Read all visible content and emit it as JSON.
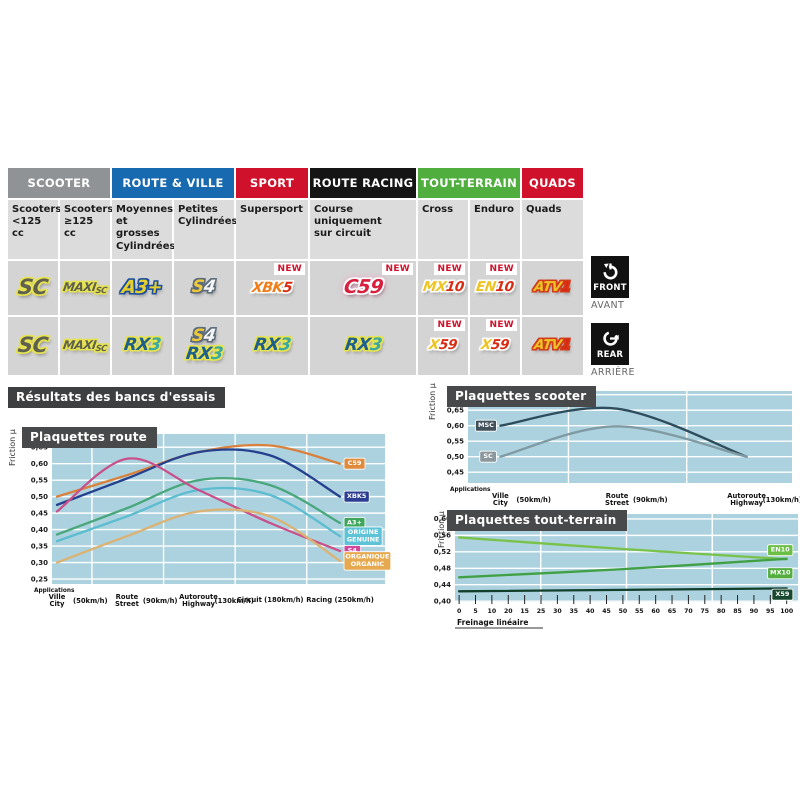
{
  "section_title": "Résultats des bancs d'essais",
  "orientation": [
    {
      "en": "FRONT",
      "fr": "AVANT"
    },
    {
      "en": "REAR",
      "fr": "ARRIÈRE"
    }
  ],
  "table": {
    "new_label": "NEW",
    "groups": [
      {
        "label": "SCOOTER",
        "bg": "#8f9396",
        "fg": "#ffffff",
        "span": 2
      },
      {
        "label": "ROUTE & VILLE",
        "bg": "#1769b0",
        "fg": "#ffffff",
        "span": 2
      },
      {
        "label": "SPORT",
        "bg": "#d0112b",
        "fg": "#ffffff",
        "span": 1
      },
      {
        "label": "ROUTE RACING",
        "bg": "#151515",
        "fg": "#ffffff",
        "span": 1
      },
      {
        "label": "TOUT-TERRAIN",
        "bg": "#4fae3d",
        "fg": "#ffffff",
        "span": 2
      },
      {
        "label": "QUADS",
        "bg": "#d0112b",
        "fg": "#ffffff",
        "span": 1
      }
    ],
    "columns": [
      "Scooters\n<125 cc",
      "Scooters\n≥125 cc",
      "Moyennes\net grosses\nCylindrées",
      "Petites\nCylindrées",
      "Supersport",
      "Course\nuniquement\nsur circuit",
      "Cross",
      "Enduro",
      "Quads"
    ],
    "rows": [
      {
        "id": "front",
        "cells": [
          {
            "badges": [
              {
                "name": "SC",
                "parts": [
                  {
                    "t": "SC",
                    "c": "#5f6050"
                  }
                ],
                "outline": "#e6e34e"
              }
            ]
          },
          {
            "badges": [
              {
                "name": "MAXI-SC",
                "parts": [
                  {
                    "t": "MAXI",
                    "c": "#5f6050"
                  },
                  {
                    "t": "SC",
                    "c": "#5f6050",
                    "small": true
                  }
                ],
                "outline": "#e6e34e"
              }
            ]
          },
          {
            "badges": [
              {
                "name": "A3+",
                "parts": [
                  {
                    "t": "A3+",
                    "c": "#e7cf2e"
                  }
                ],
                "outline": "#1d4f9e"
              }
            ]
          },
          {
            "badges": [
              {
                "name": "S4",
                "parts": [
                  {
                    "t": "S",
                    "c": "#eec73a"
                  },
                  {
                    "t": "4",
                    "c": "#f5f5f5"
                  }
                ],
                "outline": "#5a6b7a"
              }
            ]
          },
          {
            "badges": [
              {
                "name": "XBK5",
                "parts": [
                  {
                    "t": "XBK",
                    "c": "#ef7d1a"
                  },
                  {
                    "t": "5",
                    "c": "#d92b12"
                  }
                ],
                "outline": "#ffffff"
              }
            ],
            "new": true
          },
          {
            "badges": [
              {
                "name": "C59",
                "parts": [
                  {
                    "t": "C59",
                    "c": "#d6203d"
                  }
                ],
                "outline": "#ffffff",
                "glow": "#f2a0c0"
              }
            ],
            "new": true
          },
          {
            "badges": [
              {
                "name": "MX10",
                "parts": [
                  {
                    "t": "MX",
                    "c": "#eec425"
                  },
                  {
                    "t": "10",
                    "c": "#d92b12"
                  }
                ],
                "outline": "#ffffff"
              }
            ],
            "new": true
          },
          {
            "badges": [
              {
                "name": "EN10",
                "parts": [
                  {
                    "t": "EN",
                    "c": "#eec425"
                  },
                  {
                    "t": "10",
                    "c": "#d92b12"
                  }
                ],
                "outline": "#ffffff"
              }
            ],
            "new": true
          },
          {
            "badges": [
              {
                "name": "ATV1",
                "parts": [
                  {
                    "t": "ATV",
                    "c": "#eec425"
                  },
                  {
                    "t": "1",
                    "c": "#d92b12"
                  }
                ],
                "outline": "#d23b1a"
              }
            ]
          }
        ]
      },
      {
        "id": "rear",
        "cells": [
          {
            "badges": [
              {
                "name": "SC",
                "parts": [
                  {
                    "t": "SC",
                    "c": "#5f6050"
                  }
                ],
                "outline": "#e6e34e"
              }
            ]
          },
          {
            "badges": [
              {
                "name": "MAXI-SC",
                "parts": [
                  {
                    "t": "MAXI",
                    "c": "#5f6050"
                  },
                  {
                    "t": "SC",
                    "c": "#5f6050",
                    "small": true
                  }
                ],
                "outline": "#e6e34e"
              }
            ]
          },
          {
            "badges": [
              {
                "name": "RX3",
                "parts": [
                  {
                    "t": "RX",
                    "c": "#1e5f8c"
                  },
                  {
                    "t": "3",
                    "c": "#3aa7a0"
                  }
                ],
                "outline": "#e6e34e"
              }
            ]
          },
          {
            "badges": [
              {
                "name": "S4",
                "parts": [
                  {
                    "t": "S",
                    "c": "#eec73a"
                  },
                  {
                    "t": "4",
                    "c": "#f5f5f5"
                  }
                ],
                "outline": "#5a6b7a"
              },
              {
                "name": "RX3",
                "parts": [
                  {
                    "t": "RX",
                    "c": "#1e5f8c"
                  },
                  {
                    "t": "3",
                    "c": "#3aa7a0"
                  }
                ],
                "outline": "#e6e34e"
              }
            ]
          },
          {
            "badges": [
              {
                "name": "RX3",
                "parts": [
                  {
                    "t": "RX",
                    "c": "#1e5f8c"
                  },
                  {
                    "t": "3",
                    "c": "#3aa7a0"
                  }
                ],
                "outline": "#e6e34e"
              }
            ]
          },
          {
            "badges": [
              {
                "name": "RX3",
                "parts": [
                  {
                    "t": "RX",
                    "c": "#1e5f8c"
                  },
                  {
                    "t": "3",
                    "c": "#3aa7a0"
                  }
                ],
                "outline": "#e6e34e"
              }
            ]
          },
          {
            "badges": [
              {
                "name": "X59",
                "parts": [
                  {
                    "t": "X",
                    "c": "#eec425"
                  },
                  {
                    "t": "59",
                    "c": "#d92b12"
                  }
                ],
                "outline": "#ffffff"
              }
            ],
            "new": true
          },
          {
            "badges": [
              {
                "name": "X59",
                "parts": [
                  {
                    "t": "X",
                    "c": "#eec425"
                  },
                  {
                    "t": "59",
                    "c": "#d92b12"
                  }
                ],
                "outline": "#ffffff"
              }
            ],
            "new": true
          },
          {
            "badges": [
              {
                "name": "ATV1",
                "parts": [
                  {
                    "t": "ATV",
                    "c": "#eec425"
                  },
                  {
                    "t": "1",
                    "c": "#d92b12"
                  }
                ],
                "outline": "#d23b1a"
              }
            ]
          }
        ]
      }
    ]
  },
  "chart_data": [
    {
      "id": "route",
      "type": "line",
      "title": "Plaquettes route",
      "ylabel": "Friction µ",
      "x_note": "Applications",
      "ylim": [
        0.235,
        0.69
      ],
      "yticks": [
        0.65,
        0.6,
        0.55,
        0.5,
        0.45,
        0.4,
        0.35,
        0.3,
        0.25
      ],
      "ytick_labels": [
        "0,65",
        "0,60",
        "0,55",
        "0,50",
        "0,45",
        "0,40",
        "0,35",
        "0,30",
        "0,25"
      ],
      "categories": [
        {
          "fr": "Ville",
          "en": "City",
          "speed": "(50km/h)"
        },
        {
          "fr": "Route",
          "en": "Street",
          "speed": "(90km/h)"
        },
        {
          "fr": "Autoroute",
          "en": "Highway",
          "speed": "(130km/h)"
        },
        {
          "fr": "Circuit",
          "speed": "(180km/h)"
        },
        {
          "fr": "Racing",
          "speed": "(250km/h)"
        }
      ],
      "series": [
        {
          "name": "C59",
          "color": "#d9813c",
          "badge": [
            "C59"
          ],
          "badge_bg": "#e08a3c",
          "badge_pos": "end",
          "values": [
            0.5,
            0.565,
            0.635,
            0.655,
            0.6
          ]
        },
        {
          "name": "XBK5",
          "color": "#24408f",
          "badge": [
            "XBK5"
          ],
          "badge_bg": "#2c3e92",
          "badge_pos": "end",
          "values": [
            0.475,
            0.555,
            0.635,
            0.625,
            0.5
          ]
        },
        {
          "name": "A3+",
          "color": "#49a77c",
          "badge": [
            "A3+"
          ],
          "badge_bg": "#3fa45c",
          "badge_pos": "end",
          "values": [
            0.385,
            0.465,
            0.55,
            0.535,
            0.42
          ]
        },
        {
          "name": "ORIGINE GENUINE",
          "color": "#5cbcd0",
          "badge": [
            "ORIGINE",
            "GENUINE"
          ],
          "badge_bg": "#5fc3d8",
          "badge_pos": "end",
          "values": [
            0.365,
            0.44,
            0.52,
            0.505,
            0.38
          ]
        },
        {
          "name": "S4",
          "color": "#c9508a",
          "badge": [
            "S4"
          ],
          "badge_bg": "#d0479b",
          "badge_pos": "end",
          "values": [
            0.455,
            0.615,
            0.52,
            0.42,
            0.335
          ]
        },
        {
          "name": "ORGANIQUE ORGANIC",
          "color": "#dcb273",
          "badge": [
            "ORGANIQUE",
            "ORGANIC"
          ],
          "badge_bg": "#e7a94f",
          "badge_pos": "end",
          "values": [
            0.3,
            0.38,
            0.455,
            0.44,
            0.305
          ]
        }
      ]
    },
    {
      "id": "scooter",
      "type": "line",
      "title": "Plaquettes scooter",
      "ylabel": "Friction µ",
      "x_note": "Applications",
      "ylim": [
        0.415,
        0.712
      ],
      "yticks": [
        0.7,
        0.65,
        0.6,
        0.55,
        0.5,
        0.45
      ],
      "ytick_labels": [
        "0,70",
        "0,65",
        "0,60",
        "0,55",
        "0,50",
        "0,45"
      ],
      "categories": [
        {
          "fr": "Ville",
          "en": "City",
          "speed": "(50km/h)"
        },
        {
          "fr": "Route",
          "en": "Street",
          "speed": "(90km/h)"
        },
        {
          "fr": "Autoroute",
          "en": "Highway",
          "speed": "(130km/h)"
        }
      ],
      "series": [
        {
          "name": "MSC",
          "color": "#2e4c5c",
          "badge": [
            "MSC"
          ],
          "badge_bg": "#42505a",
          "badge_pos": "start",
          "values": [
            0.6,
            0.655,
            0.5
          ]
        },
        {
          "name": "SC",
          "color": "#7f9aa3",
          "badge": [
            "SC"
          ],
          "badge_bg": "#8b979c",
          "badge_pos": "start",
          "values": [
            0.5,
            0.598,
            0.5
          ]
        }
      ]
    },
    {
      "id": "terrain",
      "type": "line",
      "title": "Plaquettes tout-terrain",
      "ylabel": "Friction µ",
      "xlabel": "Freinage linéaire",
      "ylim": [
        0.398,
        0.612
      ],
      "yticks": [
        0.6,
        0.56,
        0.52,
        0.48,
        0.44,
        0.4
      ],
      "ytick_labels": [
        "0,60",
        "0,56",
        "0,52",
        "0,48",
        "0,44",
        "0,40"
      ],
      "xlim": [
        0,
        100
      ],
      "xtick_labels": [
        "0",
        "5",
        "10",
        "20",
        "15",
        "25",
        "30",
        "35",
        "40",
        "45",
        "50",
        "55",
        "60",
        "65",
        "70",
        "75",
        "80",
        "85",
        "90",
        "95",
        "100"
      ],
      "series": [
        {
          "name": "EN10",
          "color": "#79c24a",
          "badge": [
            "EN10"
          ],
          "badge_bg": "#6cbf45",
          "badge_pos": "right",
          "badge_v": 0.524,
          "points": [
            [
              0,
              0.555
            ],
            [
              50,
              0.527
            ],
            [
              100,
              0.502
            ]
          ]
        },
        {
          "name": "MX10",
          "color": "#41a044",
          "badge": [
            "MX10"
          ],
          "badge_bg": "#53ae3f",
          "badge_pos": "right",
          "badge_v": 0.468,
          "points": [
            [
              0,
              0.458
            ],
            [
              50,
              0.478
            ],
            [
              100,
              0.503
            ]
          ]
        },
        {
          "name": "X59",
          "color": "#123f2c",
          "badge": [
            "X59"
          ],
          "badge_bg": "#16482f",
          "badge_pos": "right",
          "badge_v": 0.416,
          "points": [
            [
              0,
              0.424
            ],
            [
              100,
              0.431
            ]
          ]
        }
      ]
    }
  ]
}
